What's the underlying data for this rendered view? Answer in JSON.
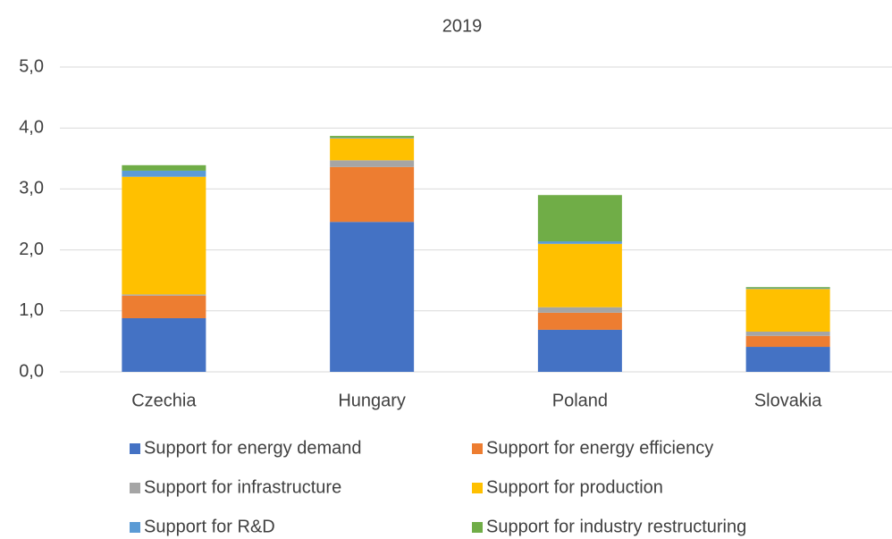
{
  "chart_data": {
    "type": "stacked_bar",
    "title": "2019",
    "categories": [
      "Czechia",
      "Hungary",
      "Poland",
      "Slovakia"
    ],
    "series": [
      {
        "name": "Support for energy demand",
        "color": "#4472c4",
        "values": [
          0.88,
          2.46,
          0.69,
          0.41
        ]
      },
      {
        "name": "Support for energy efficiency",
        "color": "#ed7d31",
        "values": [
          0.37,
          0.9,
          0.28,
          0.18
        ]
      },
      {
        "name": "Support for infrastructure",
        "color": "#a5a5a5",
        "values": [
          0.02,
          0.11,
          0.09,
          0.07
        ]
      },
      {
        "name": "Support for production",
        "color": "#ffc000",
        "values": [
          1.93,
          0.36,
          1.04,
          0.7
        ]
      },
      {
        "name": "Support for R&D",
        "color": "#5b9bd5",
        "values": [
          0.1,
          0.01,
          0.04,
          0.01
        ]
      },
      {
        "name": "Support for industry restructuring",
        "color": "#70ad47",
        "values": [
          0.09,
          0.03,
          0.76,
          0.02
        ]
      }
    ],
    "ylim": [
      0,
      5
    ],
    "yticks": [
      {
        "value": 0,
        "label": "0,0"
      },
      {
        "value": 1,
        "label": "1,0"
      },
      {
        "value": 2,
        "label": "2,0"
      },
      {
        "value": 3,
        "label": "3,0"
      },
      {
        "value": 4,
        "label": "4,0"
      },
      {
        "value": 5,
        "label": "5,0"
      }
    ],
    "grid": true
  }
}
